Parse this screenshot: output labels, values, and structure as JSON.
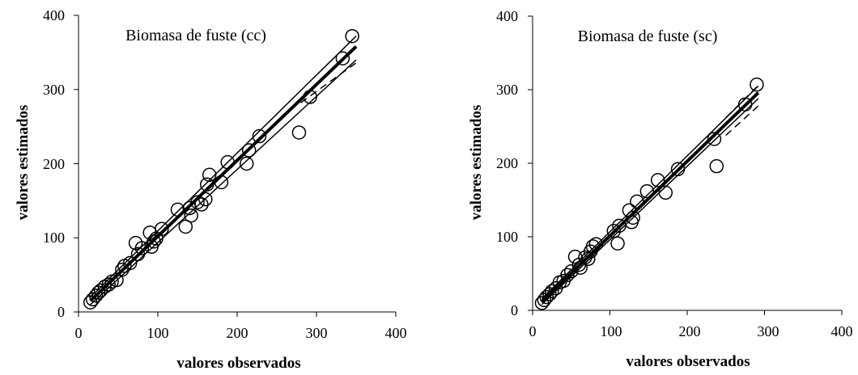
{
  "chart_data": [
    {
      "type": "scatter",
      "title": "Biomasa de fuste (cc)",
      "xlabel": "valores observados",
      "ylabel": "valores estimados",
      "xlim": [
        0,
        400
      ],
      "ylim": [
        0,
        400
      ],
      "xticks": [
        "0",
        "100",
        "200",
        "300",
        "400"
      ],
      "yticks": [
        "0",
        "100",
        "200",
        "300",
        "400"
      ],
      "grid": false,
      "points": [
        [
          15,
          13
        ],
        [
          18,
          17
        ],
        [
          22,
          22
        ],
        [
          25,
          26
        ],
        [
          28,
          29
        ],
        [
          33,
          34
        ],
        [
          38,
          37
        ],
        [
          42,
          41
        ],
        [
          48,
          43
        ],
        [
          55,
          57
        ],
        [
          58,
          62
        ],
        [
          65,
          66
        ],
        [
          72,
          93
        ],
        [
          75,
          78
        ],
        [
          80,
          86
        ],
        [
          90,
          107
        ],
        [
          92,
          88
        ],
        [
          95,
          95
        ],
        [
          98,
          99
        ],
        [
          105,
          112
        ],
        [
          125,
          138
        ],
        [
          135,
          115
        ],
        [
          140,
          140
        ],
        [
          142,
          130
        ],
        [
          150,
          148
        ],
        [
          155,
          145
        ],
        [
          160,
          152
        ],
        [
          162,
          172
        ],
        [
          165,
          185
        ],
        [
          180,
          175
        ],
        [
          188,
          202
        ],
        [
          212,
          200
        ],
        [
          215,
          218
        ],
        [
          228,
          237
        ],
        [
          278,
          242
        ],
        [
          292,
          290
        ],
        [
          333,
          342
        ],
        [
          345,
          372
        ]
      ],
      "lines": [
        {
          "style": "bold",
          "from": [
            15,
            15
          ],
          "to": [
            350,
            358
          ]
        },
        {
          "style": "thin",
          "from": [
            15,
            20
          ],
          "to": [
            350,
            372
          ]
        },
        {
          "style": "thin",
          "from": [
            15,
            10
          ],
          "to": [
            350,
            340
          ]
        },
        {
          "style": "dashed",
          "from": [
            280,
            282
          ],
          "to": [
            350,
            336
          ]
        }
      ]
    },
    {
      "type": "scatter",
      "title": "Biomasa de fuste (sc)",
      "xlabel": "valores observados",
      "ylabel": "valores estimados",
      "xlim": [
        0,
        400
      ],
      "ylim": [
        0,
        400
      ],
      "xticks": [
        "0",
        "100",
        "200",
        "300",
        "400"
      ],
      "yticks": [
        "0",
        "100",
        "200",
        "300",
        "400"
      ],
      "grid": false,
      "points": [
        [
          12,
          10
        ],
        [
          15,
          14
        ],
        [
          18,
          18
        ],
        [
          22,
          22
        ],
        [
          25,
          26
        ],
        [
          30,
          30
        ],
        [
          35,
          38
        ],
        [
          40,
          40
        ],
        [
          45,
          48
        ],
        [
          50,
          53
        ],
        [
          55,
          73
        ],
        [
          60,
          62
        ],
        [
          62,
          58
        ],
        [
          68,
          72
        ],
        [
          72,
          70
        ],
        [
          75,
          80
        ],
        [
          78,
          87
        ],
        [
          82,
          90
        ],
        [
          105,
          108
        ],
        [
          110,
          91
        ],
        [
          112,
          115
        ],
        [
          125,
          136
        ],
        [
          128,
          120
        ],
        [
          130,
          126
        ],
        [
          135,
          148
        ],
        [
          148,
          162
        ],
        [
          162,
          177
        ],
        [
          172,
          160
        ],
        [
          188,
          192
        ],
        [
          235,
          233
        ],
        [
          238,
          196
        ],
        [
          275,
          280
        ],
        [
          290,
          307
        ]
      ],
      "lines": [
        {
          "style": "bold",
          "from": [
            12,
            12
          ],
          "to": [
            292,
            296
          ]
        },
        {
          "style": "thin",
          "from": [
            12,
            16
          ],
          "to": [
            292,
            305
          ]
        },
        {
          "style": "thin",
          "from": [
            12,
            8
          ],
          "to": [
            292,
            288
          ]
        },
        {
          "style": "dashed",
          "from": [
            250,
            262
          ],
          "to": [
            292,
            306
          ]
        },
        {
          "style": "dashed",
          "from": [
            250,
            238
          ],
          "to": [
            292,
            278
          ]
        }
      ]
    }
  ]
}
